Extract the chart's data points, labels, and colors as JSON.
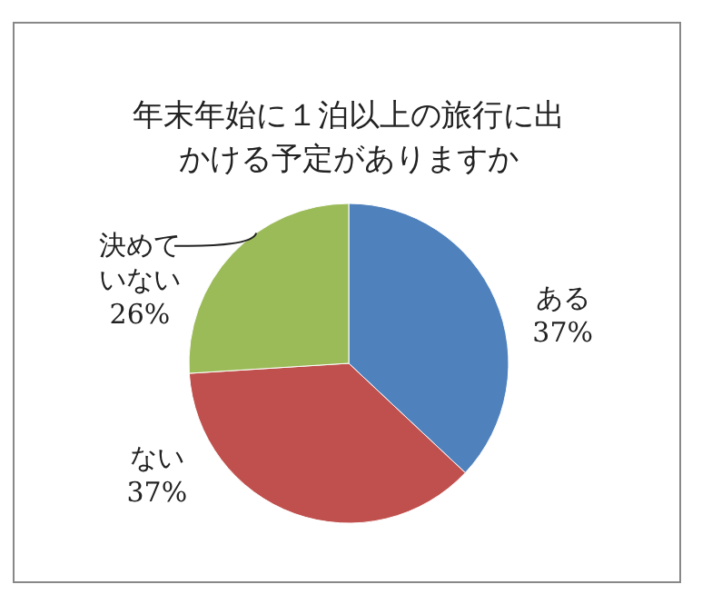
{
  "chart_data": {
    "type": "pie",
    "title": "年末年始に１泊以上の旅行に出かける予定がありますか",
    "categories": [
      "ある",
      "ない",
      "決めていない"
    ],
    "values": [
      37,
      37,
      26
    ],
    "value_labels": [
      "37%",
      "37%",
      "26%"
    ],
    "colors": [
      "#4f81bd",
      "#c0504d",
      "#9bbb59"
    ]
  }
}
